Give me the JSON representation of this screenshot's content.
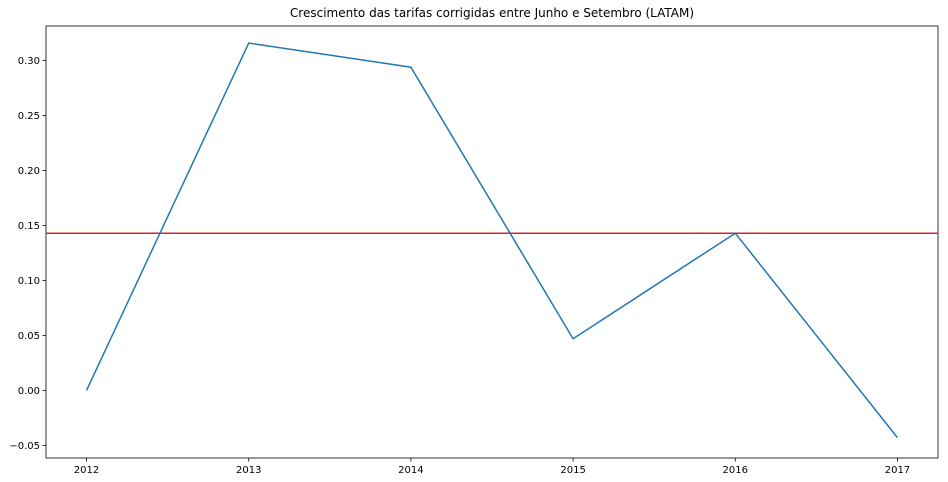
{
  "chart_data": {
    "type": "line",
    "title": "Crescimento das tarifas corrigidas entre Junho e Setembro (LATAM)",
    "xlabel": "",
    "ylabel": "",
    "x": [
      2012,
      2013,
      2014,
      2015,
      2016,
      2017
    ],
    "series": [
      {
        "values": [
          0.0,
          0.316,
          0.294,
          0.047,
          0.143,
          -0.043
        ],
        "color": "#1f77b4"
      }
    ],
    "reference_line": {
      "y": 0.143,
      "color": "#d62728"
    },
    "xlim": [
      2011.75,
      2017.25
    ],
    "ylim": [
      -0.0615,
      0.3315
    ],
    "x_ticks": [
      "2012",
      "2013",
      "2014",
      "2015",
      "2016",
      "2017"
    ],
    "y_ticks": [
      "−0.05",
      "0.00",
      "0.05",
      "0.10",
      "0.15",
      "0.20",
      "0.25",
      "0.30"
    ],
    "grid": false,
    "legend": "none"
  }
}
